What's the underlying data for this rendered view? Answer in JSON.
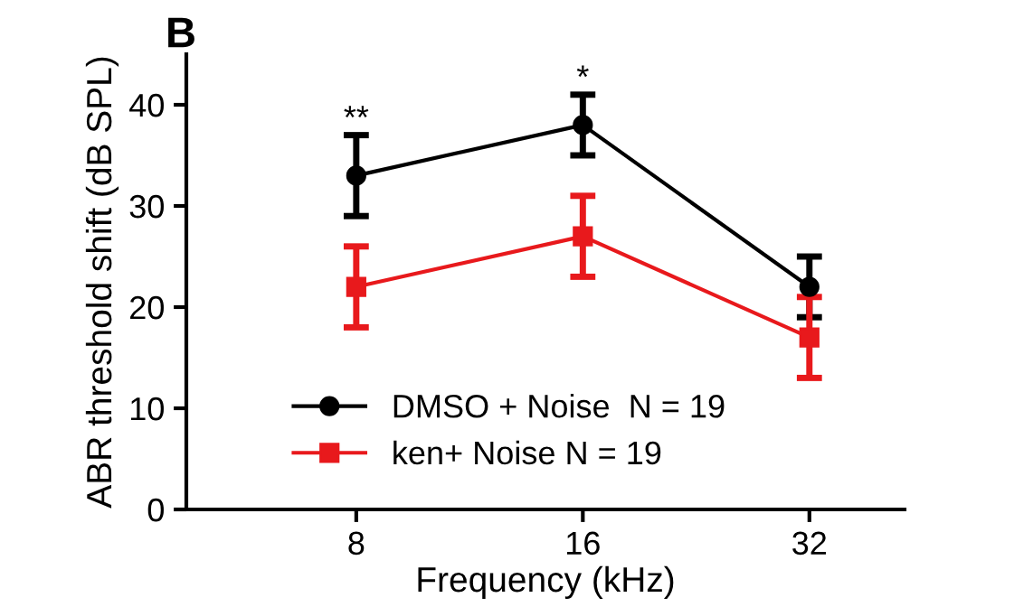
{
  "chart_data": {
    "type": "line",
    "xlabel": "Frequency (kHz)",
    "ylabel": "ABR threshold shift (dB SPL)",
    "categories": [
      "8",
      "16",
      "32"
    ],
    "series": [
      {
        "name": "DMSO + Noise  N = 19",
        "color": "#000000",
        "marker": "circle",
        "values": [
          33,
          38,
          22
        ],
        "errors": [
          4,
          3,
          3
        ]
      },
      {
        "name": "ken+ Noise N = 19",
        "color": "#e8191c",
        "marker": "square",
        "values": [
          22,
          27,
          17
        ],
        "errors": [
          4,
          4,
          4
        ]
      }
    ],
    "ylim": [
      0,
      45
    ],
    "yticks": [
      0,
      10,
      20,
      30,
      40
    ],
    "grid": false,
    "legend": "bottom",
    "line_style": "solid",
    "annotations": [
      "B",
      {
        "text": "**",
        "x": "8",
        "y": 37
      },
      {
        "text": "*",
        "x": "16",
        "y": 41
      }
    ]
  }
}
